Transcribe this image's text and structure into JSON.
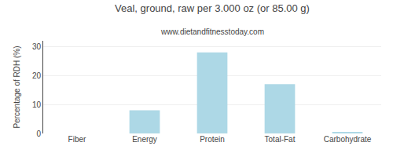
{
  "chart_data": {
    "type": "bar",
    "title": "Veal, ground, raw per 3.000 oz (or 85.00 g)",
    "subtitle": "www.dietandfitnesstoday.com",
    "categories": [
      "Fiber",
      "Energy",
      "Protein",
      "Total-Fat",
      "Carbohydrate"
    ],
    "values": [
      0,
      8,
      28,
      17,
      0.5
    ],
    "color": "#add8e6",
    "ylabel": "Percentage of RDH (%)",
    "ylim": [
      0,
      32
    ],
    "yticks": [
      0,
      10,
      20,
      30
    ],
    "grid": true
  }
}
